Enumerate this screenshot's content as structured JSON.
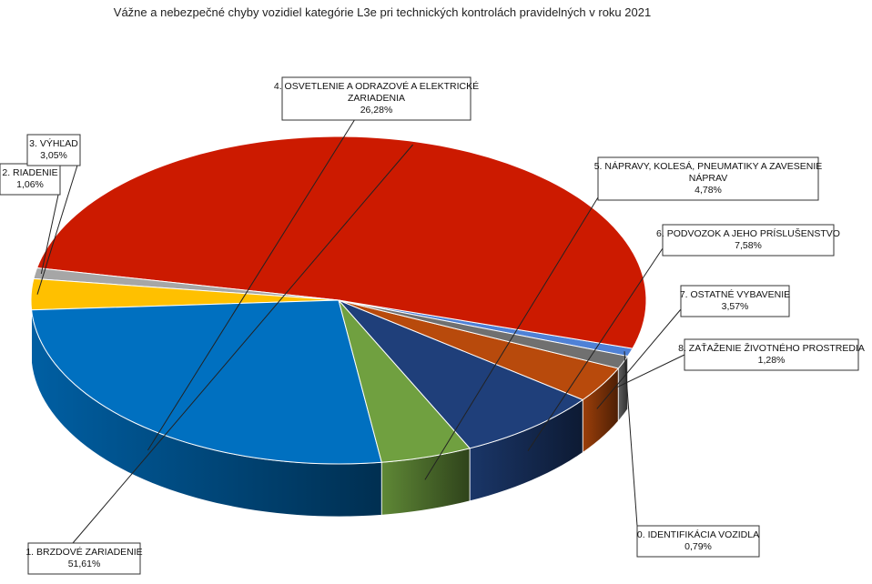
{
  "chart_data": {
    "type": "pie",
    "title": "Vážne a nebezpečné chyby vozidiel kategórie L3e pri technických kontrolách pravidelných v roku 2021",
    "slices": [
      {
        "label": "0. IDENTIFIKÁCIA VOZIDLA",
        "value": 0.79,
        "display": "0,79%",
        "color": "#4f81d6"
      },
      {
        "label": "1. BRZDOVÉ ZARIADENIE",
        "value": 51.61,
        "display": "51,61%",
        "color": "#cc1a00"
      },
      {
        "label": "2. RIADENIE",
        "value": 1.06,
        "display": "1,06%",
        "color": "#a6a6a6"
      },
      {
        "label": "3. VÝHĽAD",
        "value": 3.05,
        "display": "3,05%",
        "color": "#ffc000"
      },
      {
        "label": "4. OSVETLENIE A ODRAZOVÉ A ELEKTRICKÉ ZARIADENIA",
        "value": 26.28,
        "display": "26,28%",
        "color": "#0070c0"
      },
      {
        "label": "5. NÁPRAVY, KOLESÁ, PNEUMATIKY A ZAVESENIE NÁPRAV",
        "value": 4.78,
        "display": "4,78%",
        "color": "#70a040"
      },
      {
        "label": "6. PODVOZOK A JEHO PRÍSLUŠENSTVO",
        "value": 7.58,
        "display": "7,58%",
        "color": "#1f3f7a"
      },
      {
        "label": "7. OSTATNÉ VYBAVENIE",
        "value": 3.57,
        "display": "3,57%",
        "color": "#b84a0c"
      },
      {
        "label": "8. ZAŤAŽENIE ŽIVOTNÉHO PROSTREDIA",
        "value": 1.28,
        "display": "1,28%",
        "color": "#707070"
      }
    ],
    "legend": "none"
  }
}
